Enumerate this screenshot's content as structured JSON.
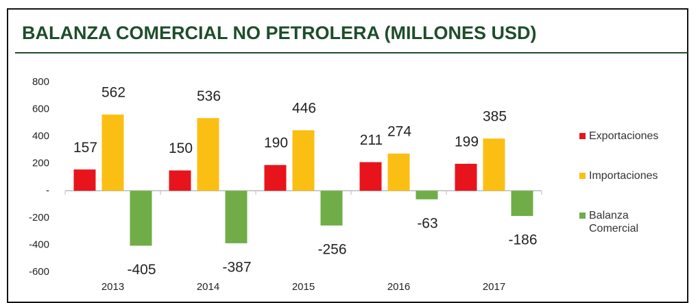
{
  "chart_data": {
    "type": "bar",
    "title": "BALANZA COMERCIAL NO PETROLERA (MILLONES USD)",
    "categories": [
      "2013",
      "2014",
      "2015",
      "2016",
      "2017"
    ],
    "series": [
      {
        "name": "Exportaciones",
        "color": "#e8141c",
        "values": [
          157,
          150,
          190,
          211,
          199
        ]
      },
      {
        "name": "Importaciones",
        "color": "#fbbf14",
        "values": [
          562,
          536,
          446,
          274,
          385
        ]
      },
      {
        "name": "Balanza Comercial",
        "color": "#70ad47",
        "values": [
          -405,
          -387,
          -256,
          -63,
          -186
        ]
      }
    ],
    "ylim": [
      -600,
      800
    ],
    "yticks": [
      800,
      600,
      400,
      200,
      {
        "value": 0,
        "label": "-"
      },
      -200,
      -400,
      -600
    ],
    "grid": false,
    "legend": "right"
  }
}
